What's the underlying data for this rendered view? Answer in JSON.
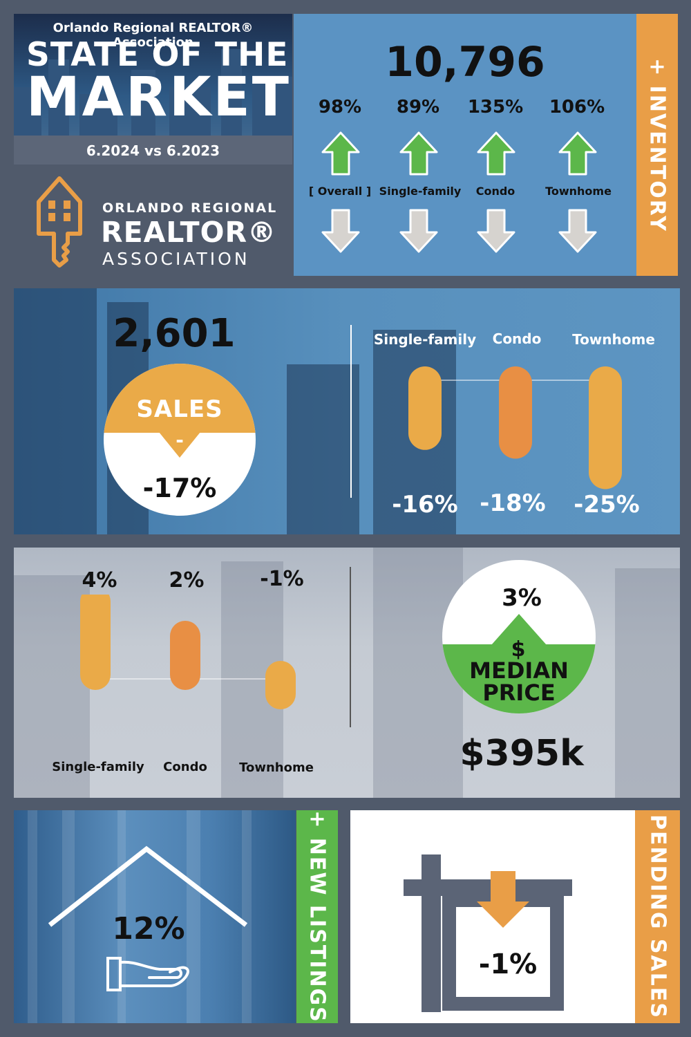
{
  "header": {
    "association_small": "Orlando Regional REALTOR® Association",
    "title_line1": "STATE OF THE",
    "title_line2": "MARKET",
    "comparison": "6.2024 vs 6.2023"
  },
  "logo": {
    "line1": "ORLANDO REGIONAL",
    "line2": "REALTOR®",
    "line3": "ASSOCIATION"
  },
  "inventory": {
    "side_label": "+ INVENTORY",
    "total": "10,796",
    "items": [
      {
        "pct": "98%",
        "label": "[ Overall ]",
        "direction": "up"
      },
      {
        "pct": "89%",
        "label": "Single-family",
        "direction": "up"
      },
      {
        "pct": "135%",
        "label": "Condo",
        "direction": "up"
      },
      {
        "pct": "106%",
        "label": "Townhome",
        "direction": "up"
      }
    ]
  },
  "sales": {
    "total": "2,601",
    "label": "SALES",
    "sign": "-",
    "pct": "-17%",
    "bars": [
      {
        "label": "Single-family",
        "pct": "-16%",
        "value": -16,
        "color": "#eaaa48"
      },
      {
        "label": "Condo",
        "pct": "-18%",
        "value": -18,
        "color": "#e88f44"
      },
      {
        "label": "Townhome",
        "pct": "-25%",
        "value": -25,
        "color": "#eaaa48"
      }
    ]
  },
  "median_price": {
    "pct": "3%",
    "symbol": "$",
    "label_line1": "MEDIAN",
    "label_line2": "PRICE",
    "value": "$395k",
    "bars": [
      {
        "label": "Single-family",
        "pct": "4%",
        "value": 4,
        "color": "#eaaa48"
      },
      {
        "label": "Condo",
        "pct": "2%",
        "value": 2,
        "color": "#e88f44"
      },
      {
        "label": "Townhome",
        "pct": "-1%",
        "value": -1,
        "color": "#eaaa48"
      }
    ]
  },
  "new_listings": {
    "side_label": "+ NEW LISTINGS",
    "pct": "12%"
  },
  "pending_sales": {
    "side_label": "PENDING SALES",
    "pct": "-1%"
  },
  "colors": {
    "orange": "#e99e47",
    "green": "#5cb74a",
    "blue": "#5b93c3",
    "slate": "#505a6b"
  }
}
